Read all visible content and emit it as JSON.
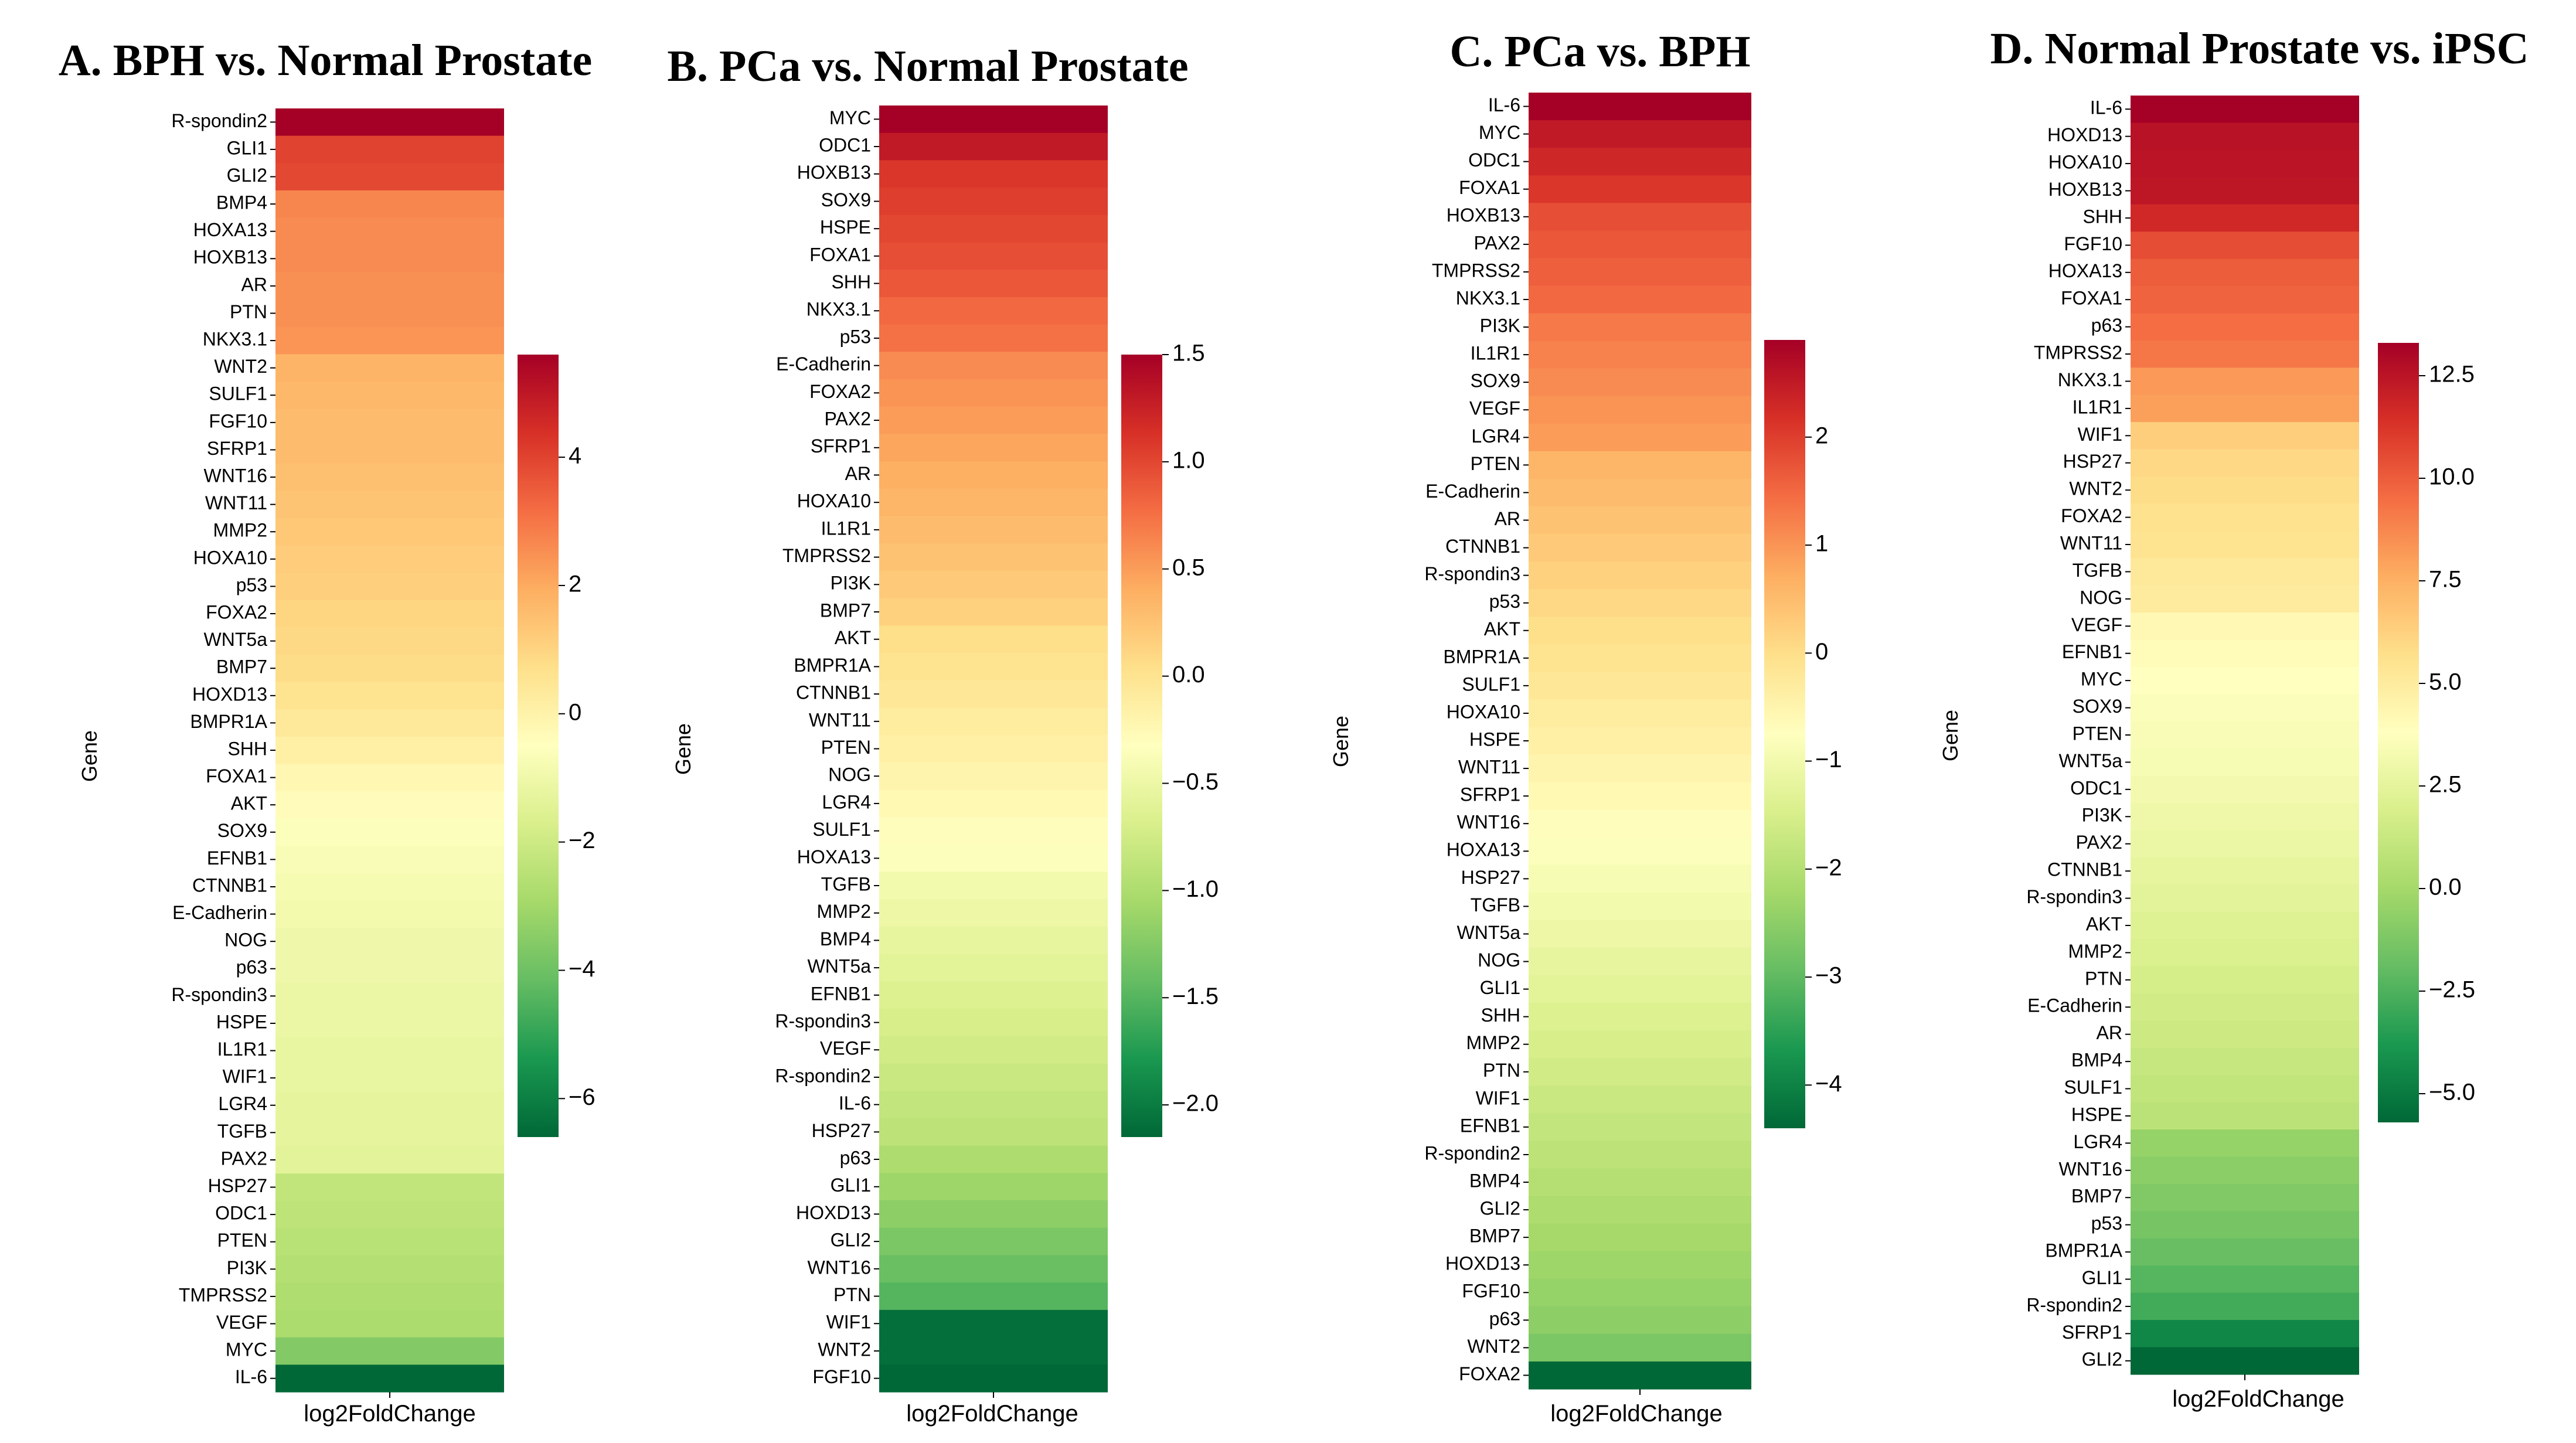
{
  "chart_data": [
    {
      "type": "heatmap",
      "title": "A. BPH vs. Normal Prostate",
      "xlabel": "log2FoldChange",
      "ylabel": "Gene",
      "colormap": "RdYlGn (diverging red-yellow-green)",
      "colorbar": {
        "range": [
          -6.6,
          5.6
        ],
        "ticks": [
          4,
          2,
          0,
          -2,
          -4,
          -6
        ],
        "tick_labels": [
          "4",
          "2",
          "0",
          "−2",
          "−4",
          "−6"
        ]
      },
      "genes": [
        "R-spondin2",
        "GLI1",
        "GLI2",
        "BMP4",
        "HOXA13",
        "HOXB13",
        "AR",
        "PTN",
        "NKX3.1",
        "WNT2",
        "SULF1",
        "FGF10",
        "SFRP1",
        "WNT16",
        "WNT11",
        "MMP2",
        "HOXA10",
        "p53",
        "FOXA2",
        "WNT5a",
        "BMP7",
        "HOXD13",
        "BMPR1A",
        "SHH",
        "FOXA1",
        "AKT",
        "SOX9",
        "EFNB1",
        "CTNNB1",
        "E-Cadherin",
        "NOG",
        "p63",
        "R-spondin3",
        "HSPE",
        "IL1R1",
        "WIF1",
        "LGR4",
        "TGFB",
        "PAX2",
        "HSP27",
        "ODC1",
        "PTEN",
        "PI3K",
        "TMPRSS2",
        "VEGF",
        "MYC",
        "IL-6"
      ],
      "values": [
        5.6,
        4.0,
        3.9,
        2.7,
        2.6,
        2.6,
        2.5,
        2.5,
        2.4,
        1.8,
        1.7,
        1.6,
        1.6,
        1.5,
        1.4,
        1.3,
        1.2,
        1.1,
        1.0,
        0.9,
        0.8,
        0.6,
        0.4,
        0.1,
        -0.2,
        -0.4,
        -0.6,
        -0.7,
        -0.8,
        -0.9,
        -1.0,
        -1.0,
        -1.1,
        -1.1,
        -1.2,
        -1.2,
        -1.3,
        -1.3,
        -1.4,
        -2.3,
        -2.4,
        -2.5,
        -2.6,
        -2.7,
        -2.8,
        -3.6,
        -6.6
      ]
    },
    {
      "type": "heatmap",
      "title": "B. PCa vs. Normal Prostate",
      "xlabel": "log2FoldChange",
      "ylabel": "Gene",
      "colormap": "RdYlGn (diverging red-yellow-green)",
      "colorbar": {
        "range": [
          -2.15,
          1.5
        ],
        "ticks": [
          1.5,
          1.0,
          0.5,
          0.0,
          -0.5,
          -1.0,
          -1.5,
          -2.0
        ],
        "tick_labels": [
          "1.5",
          "1.0",
          "0.5",
          "0.0",
          "−0.5",
          "−1.0",
          "−1.5",
          "−2.0"
        ]
      },
      "genes": [
        "MYC",
        "ODC1",
        "HOXB13",
        "SOX9",
        "HSPE",
        "FOXA1",
        "SHH",
        "NKX3.1",
        "p53",
        "E-Cadherin",
        "FOXA2",
        "PAX2",
        "SFRP1",
        "AR",
        "HOXA10",
        "IL1R1",
        "TMPRSS2",
        "PI3K",
        "BMP7",
        "AKT",
        "BMPR1A",
        "CTNNB1",
        "WNT11",
        "PTEN",
        "NOG",
        "LGR4",
        "SULF1",
        "HOXA13",
        "TGFB",
        "MMP2",
        "BMP4",
        "WNT5a",
        "EFNB1",
        "R-spondin3",
        "VEGF",
        "R-spondin2",
        "IL-6",
        "HSP27",
        "p63",
        "GLI1",
        "HOXD13",
        "GLI2",
        "WNT16",
        "PTN",
        "WIF1",
        "WNT2",
        "FGF10"
      ],
      "values": [
        1.5,
        1.3,
        1.1,
        1.05,
        1.0,
        0.95,
        0.9,
        0.8,
        0.75,
        0.6,
        0.55,
        0.5,
        0.45,
        0.4,
        0.35,
        0.3,
        0.25,
        0.2,
        0.15,
        0.05,
        0.0,
        -0.05,
        -0.1,
        -0.15,
        -0.2,
        -0.25,
        -0.3,
        -0.35,
        -0.45,
        -0.5,
        -0.55,
        -0.6,
        -0.65,
        -0.7,
        -0.75,
        -0.8,
        -0.85,
        -0.9,
        -1.0,
        -1.1,
        -1.2,
        -1.3,
        -1.4,
        -1.5,
        -2.1,
        -2.1,
        -2.15
      ]
    },
    {
      "type": "heatmap",
      "title": "C. PCa vs. BPH",
      "xlabel": "log2FoldChange",
      "ylabel": "Gene",
      "colormap": "RdYlGn (diverging red-yellow-green)",
      "colorbar": {
        "range": [
          -4.4,
          2.9
        ],
        "ticks": [
          2,
          1,
          0,
          -1,
          -2,
          -3,
          -4
        ],
        "tick_labels": [
          "2",
          "1",
          "0",
          "−1",
          "−2",
          "−3",
          "−4"
        ]
      },
      "genes": [
        "IL-6",
        "MYC",
        "ODC1",
        "FOXA1",
        "HOXB13",
        "PAX2",
        "TMPRSS2",
        "NKX3.1",
        "PI3K",
        "IL1R1",
        "SOX9",
        "VEGF",
        "LGR4",
        "PTEN",
        "E-Cadherin",
        "AR",
        "CTNNB1",
        "R-spondin3",
        "p53",
        "AKT",
        "BMPR1A",
        "SULF1",
        "HOXA10",
        "HSPE",
        "WNT11",
        "SFRP1",
        "WNT16",
        "HOXA13",
        "HSP27",
        "TGFB",
        "WNT5a",
        "NOG",
        "GLI1",
        "SHH",
        "MMP2",
        "PTN",
        "WIF1",
        "EFNB1",
        "R-spondin2",
        "BMP4",
        "GLI2",
        "BMP7",
        "HOXD13",
        "FGF10",
        "p63",
        "WNT2",
        "FOXA2"
      ],
      "values": [
        2.9,
        2.5,
        2.3,
        2.1,
        1.8,
        1.7,
        1.6,
        1.5,
        1.3,
        1.2,
        1.1,
        1.0,
        0.9,
        0.6,
        0.5,
        0.4,
        0.3,
        0.2,
        0.1,
        0.0,
        -0.1,
        -0.2,
        -0.3,
        -0.4,
        -0.5,
        -0.6,
        -0.7,
        -0.8,
        -0.9,
        -1.0,
        -1.1,
        -1.2,
        -1.3,
        -1.4,
        -1.5,
        -1.6,
        -1.7,
        -1.8,
        -1.9,
        -2.0,
        -2.1,
        -2.2,
        -2.3,
        -2.4,
        -2.5,
        -2.7,
        -4.4
      ]
    },
    {
      "type": "heatmap",
      "title": "D. Normal Prostate vs. iPSC",
      "xlabel": "log2FoldChange",
      "ylabel": "Gene",
      "colormap": "RdYlGn (diverging red-yellow-green)",
      "colorbar": {
        "range": [
          -5.7,
          13.3
        ],
        "ticks": [
          12.5,
          10.0,
          7.5,
          5.0,
          2.5,
          0.0,
          -2.5,
          -5.0
        ],
        "tick_labels": [
          "12.5",
          "10.0",
          "7.5",
          "5.0",
          "2.5",
          "0.0",
          "−2.5",
          "−5.0"
        ]
      },
      "genes": [
        "IL-6",
        "HOXD13",
        "HOXA10",
        "HOXB13",
        "SHH",
        "FGF10",
        "HOXA13",
        "FOXA1",
        "p63",
        "TMPRSS2",
        "NKX3.1",
        "IL1R1",
        "WIF1",
        "HSP27",
        "WNT2",
        "FOXA2",
        "WNT11",
        "TGFB",
        "NOG",
        "VEGF",
        "EFNB1",
        "MYC",
        "SOX9",
        "PTEN",
        "WNT5a",
        "ODC1",
        "PI3K",
        "PAX2",
        "CTNNB1",
        "R-spondin3",
        "AKT",
        "MMP2",
        "PTN",
        "E-Cadherin",
        "AR",
        "BMP4",
        "SULF1",
        "HSPE",
        "LGR4",
        "WNT16",
        "BMP7",
        "p53",
        "BMPR1A",
        "GLI1",
        "R-spondin2",
        "SFRP1",
        "GLI2"
      ],
      "values": [
        13.3,
        12.6,
        12.5,
        12.4,
        11.7,
        10.5,
        10.0,
        9.8,
        9.5,
        9.2,
        8.2,
        8.0,
        6.4,
        6.0,
        5.8,
        5.6,
        5.5,
        5.2,
        5.0,
        4.2,
        4.0,
        3.8,
        3.6,
        3.5,
        3.4,
        3.2,
        3.0,
        2.8,
        2.6,
        2.4,
        2.2,
        2.0,
        1.8,
        1.6,
        1.4,
        1.2,
        1.0,
        0.8,
        -0.5,
        -0.8,
        -1.1,
        -1.4,
        -1.8,
        -2.3,
        -2.8,
        -4.5,
        -5.7
      ]
    }
  ]
}
